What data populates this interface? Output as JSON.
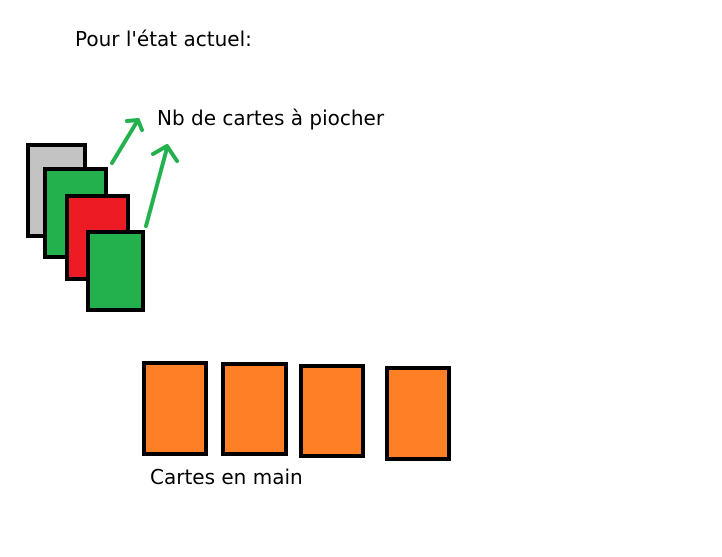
{
  "title": "Pour l'état actuel:",
  "draw_label": "Nb de cartes à piocher",
  "hand_label": "Cartes en main",
  "colors": {
    "deck": [
      "#c3c3c3",
      "#22b14c",
      "#ed1c24",
      "#22b14c"
    ],
    "hand": "#ff7f27",
    "arrow": "#22b14c"
  },
  "hand_card_count": 4
}
